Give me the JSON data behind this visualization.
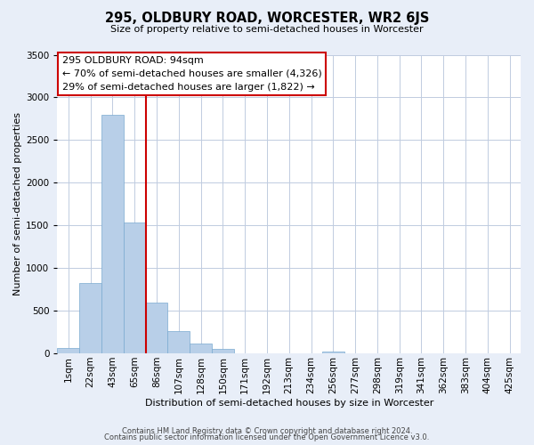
{
  "title": "295, OLDBURY ROAD, WORCESTER, WR2 6JS",
  "subtitle": "Size of property relative to semi-detached houses in Worcester",
  "xlabel": "Distribution of semi-detached houses by size in Worcester",
  "ylabel": "Number of semi-detached properties",
  "bar_labels": [
    "1sqm",
    "22sqm",
    "43sqm",
    "65sqm",
    "86sqm",
    "107sqm",
    "128sqm",
    "150sqm",
    "171sqm",
    "192sqm",
    "213sqm",
    "234sqm",
    "256sqm",
    "277sqm",
    "298sqm",
    "319sqm",
    "341sqm",
    "362sqm",
    "383sqm",
    "404sqm",
    "425sqm"
  ],
  "bar_values": [
    60,
    820,
    2800,
    1530,
    600,
    260,
    110,
    50,
    0,
    0,
    0,
    0,
    20,
    0,
    0,
    0,
    0,
    0,
    0,
    0,
    0
  ],
  "bar_color": "#b8cfe8",
  "bar_edgecolor": "#7aaad0",
  "vline_color": "#cc0000",
  "vline_pos": 3.5,
  "ann_line1": "295 OLDBURY ROAD: 94sqm",
  "ann_line2": "← 70% of semi-detached houses are smaller (4,326)",
  "ann_line3": "29% of semi-detached houses are larger (1,822) →",
  "ylim": [
    0,
    3500
  ],
  "yticks": [
    0,
    500,
    1000,
    1500,
    2000,
    2500,
    3000,
    3500
  ],
  "footer_line1": "Contains HM Land Registry data © Crown copyright and database right 2024.",
  "footer_line2": "Contains public sector information licensed under the Open Government Licence v3.0.",
  "bg_color": "#e8eef8",
  "plot_bg_color": "#ffffff",
  "grid_color": "#c0cce0",
  "title_fontsize": 10.5,
  "subtitle_fontsize": 8,
  "ylabel_fontsize": 8,
  "xlabel_fontsize": 8,
  "tick_fontsize": 7.5,
  "ann_fontsize": 8,
  "footer_fontsize": 6
}
